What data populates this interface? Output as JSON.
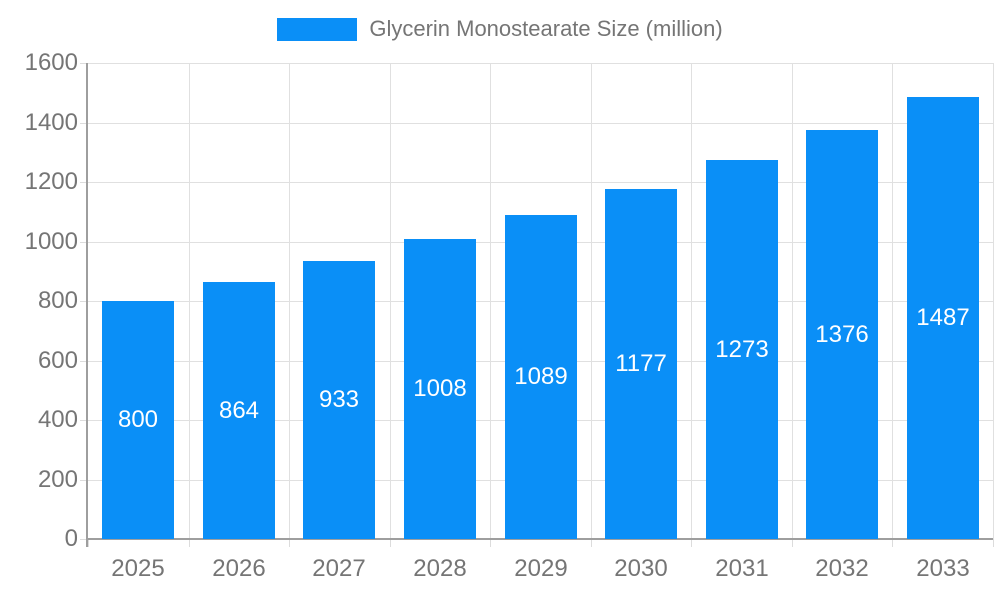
{
  "chart_data": {
    "type": "bar",
    "title": "Glycerin Monostearate Size (million)",
    "categories": [
      "2025",
      "2026",
      "2027",
      "2028",
      "2029",
      "2030",
      "2031",
      "2032",
      "2033"
    ],
    "values": [
      800,
      864,
      933,
      1008,
      1089,
      1177,
      1273,
      1376,
      1487
    ],
    "xlabel": "",
    "ylabel": "",
    "ylim": [
      0,
      1600
    ],
    "ytick_step": 200,
    "grid": true,
    "legend_position": "top-center",
    "show_value_labels": true,
    "value_labels_inside": true
  },
  "colors": {
    "bar": "#0a8ff7",
    "axis_text": "#757575",
    "legend_text": "#757575",
    "axis_line": "#9e9e9e",
    "gridline": "#e0e0e0",
    "value_label": "#ffffff",
    "background": "#ffffff"
  }
}
